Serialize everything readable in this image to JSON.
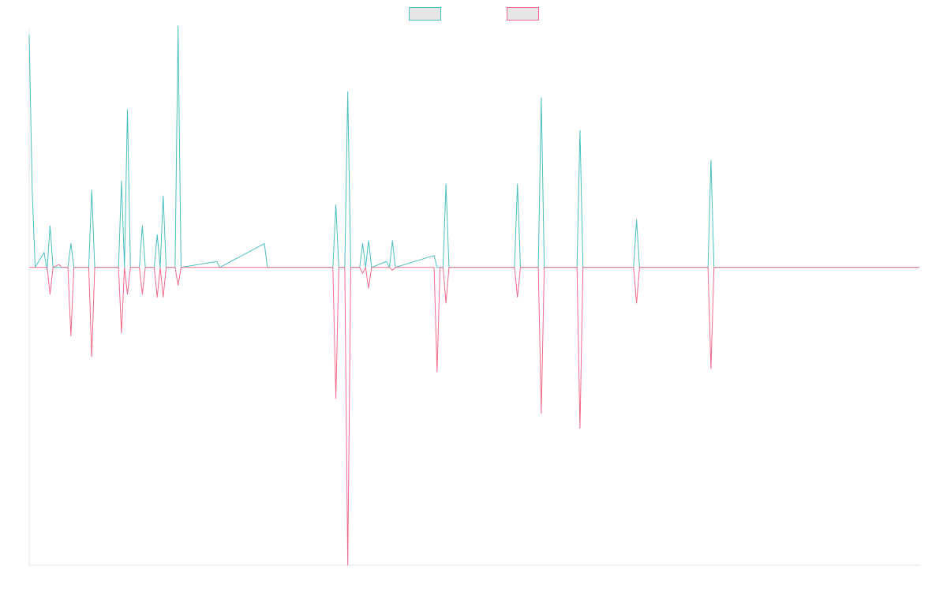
{
  "chart_data": {
    "type": "line",
    "title": "",
    "xlabel": "",
    "ylabel": "",
    "legend_position": "top-center",
    "grid": false,
    "ylim": [
      -100,
      80
    ],
    "x_count": 300,
    "series": [
      {
        "legend_fill": "#e6e6e6",
        "color": "#4bbfbf",
        "fill": "none",
        "points": [
          [
            0,
            78
          ],
          [
            1,
            26
          ],
          [
            2,
            0
          ],
          [
            5,
            5
          ],
          [
            6,
            -1
          ],
          [
            7,
            14
          ],
          [
            8,
            0
          ],
          [
            11,
            0
          ],
          [
            13,
            0
          ],
          [
            14,
            8
          ],
          [
            15,
            0
          ],
          [
            20,
            0
          ],
          [
            21,
            26
          ],
          [
            22,
            0
          ],
          [
            30,
            0
          ],
          [
            31,
            29
          ],
          [
            32,
            0
          ],
          [
            33,
            53
          ],
          [
            34,
            0
          ],
          [
            37,
            0
          ],
          [
            38,
            14
          ],
          [
            39,
            0
          ],
          [
            42,
            0
          ],
          [
            43,
            11
          ],
          [
            44,
            0
          ],
          [
            45,
            24
          ],
          [
            46,
            0
          ],
          [
            49,
            0
          ],
          [
            50,
            81
          ],
          [
            51,
            0
          ],
          [
            63,
            2
          ],
          [
            64,
            0
          ],
          [
            79,
            8
          ],
          [
            80,
            0
          ],
          [
            102,
            0
          ],
          [
            103,
            21
          ],
          [
            104,
            0
          ],
          [
            106,
            0
          ],
          [
            107,
            59
          ],
          [
            108,
            0
          ],
          [
            111,
            0
          ],
          [
            112,
            8
          ],
          [
            113,
            0
          ],
          [
            114,
            9
          ],
          [
            115,
            0
          ],
          [
            120,
            2
          ],
          [
            121,
            0
          ],
          [
            122,
            9
          ],
          [
            123,
            0
          ],
          [
            136,
            4
          ],
          [
            137,
            0
          ],
          [
            139,
            0
          ],
          [
            140,
            28
          ],
          [
            141,
            0
          ],
          [
            163,
            0
          ],
          [
            164,
            28
          ],
          [
            165,
            0
          ],
          [
            171,
            0
          ],
          [
            172,
            57
          ],
          [
            173,
            0
          ],
          [
            184,
            0
          ],
          [
            185,
            46
          ],
          [
            186,
            0
          ],
          [
            203,
            0
          ],
          [
            204,
            16
          ],
          [
            205,
            0
          ],
          [
            228,
            0
          ],
          [
            229,
            36
          ],
          [
            230,
            0
          ],
          [
            299,
            0
          ]
        ]
      },
      {
        "legend_fill": "#e6e6e6",
        "color": "#f06a8c",
        "fill": "none",
        "points": [
          [
            0,
            0
          ],
          [
            6,
            0
          ],
          [
            7,
            -9
          ],
          [
            8,
            0
          ],
          [
            10,
            1
          ],
          [
            11,
            0
          ],
          [
            13,
            0
          ],
          [
            14,
            -23
          ],
          [
            15,
            0
          ],
          [
            20,
            0
          ],
          [
            21,
            -30
          ],
          [
            22,
            0
          ],
          [
            30,
            0
          ],
          [
            31,
            -22
          ],
          [
            32,
            0
          ],
          [
            33,
            -9
          ],
          [
            34,
            0
          ],
          [
            37,
            0
          ],
          [
            38,
            -9
          ],
          [
            39,
            0
          ],
          [
            42,
            0
          ],
          [
            43,
            -10
          ],
          [
            44,
            0
          ],
          [
            45,
            -10
          ],
          [
            46,
            0
          ],
          [
            49,
            0
          ],
          [
            50,
            -6
          ],
          [
            51,
            0
          ],
          [
            102,
            0
          ],
          [
            103,
            -44
          ],
          [
            104,
            0
          ],
          [
            106,
            0
          ],
          [
            107,
            -100
          ],
          [
            108,
            0
          ],
          [
            111,
            0
          ],
          [
            112,
            -2
          ],
          [
            113,
            0
          ],
          [
            114,
            -7
          ],
          [
            115,
            0
          ],
          [
            121,
            0
          ],
          [
            122,
            -1
          ],
          [
            123,
            0
          ],
          [
            136,
            0
          ],
          [
            137,
            -35
          ],
          [
            138,
            0
          ],
          [
            139,
            0
          ],
          [
            140,
            -12
          ],
          [
            141,
            0
          ],
          [
            163,
            0
          ],
          [
            164,
            -10
          ],
          [
            165,
            0
          ],
          [
            171,
            0
          ],
          [
            172,
            -49
          ],
          [
            173,
            0
          ],
          [
            184,
            0
          ],
          [
            185,
            -54
          ],
          [
            186,
            0
          ],
          [
            203,
            0
          ],
          [
            204,
            -12
          ],
          [
            205,
            0
          ],
          [
            228,
            0
          ],
          [
            229,
            -34
          ],
          [
            230,
            0
          ],
          [
            299,
            0
          ]
        ]
      }
    ]
  }
}
